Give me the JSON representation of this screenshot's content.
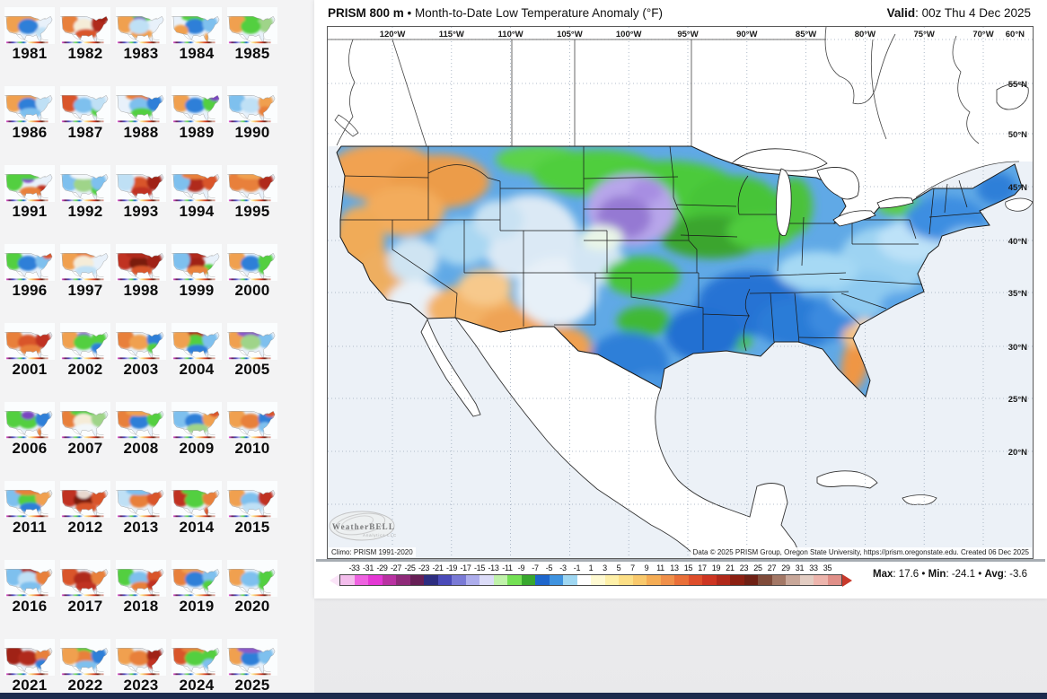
{
  "header": {
    "product": "PRISM 800 m",
    "dot": " • ",
    "title": "Month-to-Date Low Temperature Anomaly (°F)",
    "valid_label": "Valid",
    "valid_value": ": 00z Thu 4 Dec 2025"
  },
  "map": {
    "lon_labels": [
      "120°W",
      "115°W",
      "110°W",
      "105°W",
      "100°W",
      "95°W",
      "90°W",
      "85°W",
      "80°W",
      "75°W",
      "70°W"
    ],
    "lat_labels": [
      "60°N",
      "55°N",
      "50°N",
      "45°N",
      "40°N",
      "35°N",
      "30°N",
      "25°N",
      "20°N"
    ],
    "climo": "Climo: PRISM 1991-2020",
    "credit": "Data © 2025 PRISM Group, Oregon State University, https://prism.oregonstate.edu. Created 06 Dec 2025",
    "watermark": "WeatherBELL",
    "watermark_sub": "Analytics LLC"
  },
  "colorbar": {
    "labels": [
      "-33",
      "-31",
      "-29",
      "-27",
      "-25",
      "-23",
      "-21",
      "-19",
      "-17",
      "-15",
      "-13",
      "-11",
      "-9",
      "-7",
      "-5",
      "-3",
      "-1",
      "1",
      "3",
      "5",
      "7",
      "9",
      "11",
      "13",
      "15",
      "17",
      "19",
      "21",
      "23",
      "25",
      "27",
      "29",
      "31",
      "33",
      "35"
    ],
    "segments": [
      "#f3bdec",
      "#ee62e0",
      "#e438d4",
      "#b932a2",
      "#8f2a79",
      "#671f56",
      "#2d2d80",
      "#4a4ab8",
      "#7a7ad6",
      "#adadec",
      "#dcdcf8",
      "#c0f2aa",
      "#74e054",
      "#38a72e",
      "#1e66cc",
      "#3f93e0",
      "#9fd7f2",
      "#ffffff",
      "#fffad2",
      "#fef0a8",
      "#fcdf86",
      "#f9c96c",
      "#f5ad55",
      "#f0904a",
      "#e96f38",
      "#de4e2b",
      "#cd3522",
      "#b0281a",
      "#8c2012",
      "#6e2014",
      "#7f4b3a",
      "#a37866",
      "#c8a799",
      "#e3cdc3",
      "#edb5ad",
      "#e08f88"
    ],
    "left_arrow": "#fbe4f8",
    "right_arrow": "#c8392b"
  },
  "stats": {
    "max_label": "Max",
    "max_value": ": 17.6",
    "min_label": "Min",
    "min_value": ": -24.1",
    "avg_label": "Avg",
    "avg_value": ": -3.6",
    "sep": " • "
  },
  "sidebar": {
    "years": [
      {
        "label": "1981",
        "blobs": [
          [
            "N",
            "#f0a050"
          ],
          [
            "W",
            "#f0a050"
          ],
          [
            "C",
            "#2f7fd8"
          ],
          [
            "SE",
            "#bfe0f5"
          ]
        ]
      },
      {
        "label": "1982",
        "blobs": [
          [
            "W",
            "#e8803a"
          ],
          [
            "C",
            "#f5ecd8"
          ],
          [
            "E",
            "#b02a1a"
          ],
          [
            "NE",
            "#a02018"
          ],
          [
            "S",
            "#d9542b"
          ]
        ]
      },
      {
        "label": "1983",
        "blobs": [
          [
            "N",
            "#52cf3f"
          ],
          [
            "NC",
            "#8a5ac8"
          ],
          [
            "W",
            "#f0a050"
          ],
          [
            "S",
            "#f0a050"
          ],
          [
            "C",
            "#bfe0f5"
          ]
        ]
      },
      {
        "label": "1984",
        "blobs": [
          [
            "N",
            "#52cf3f"
          ],
          [
            "C",
            "#2f7fd8"
          ],
          [
            "SW",
            "#f0a050"
          ],
          [
            "FL",
            "#f0a050"
          ],
          [
            "E",
            "#7ec0ee"
          ]
        ]
      },
      {
        "label": "1985",
        "blobs": [
          [
            "NC",
            "#7a44c0"
          ],
          [
            "N",
            "#52cf3f"
          ],
          [
            "W",
            "#f0a050"
          ],
          [
            "E",
            "#9fd489"
          ],
          [
            "C",
            "#52cf3f"
          ]
        ]
      },
      {
        "label": "1986",
        "blobs": [
          [
            "W",
            "#f0a050"
          ],
          [
            "N",
            "#f0a050"
          ],
          [
            "C",
            "#2f7fd8"
          ],
          [
            "S",
            "#7ec0ee"
          ],
          [
            "E",
            "#bfe0f5"
          ]
        ]
      },
      {
        "label": "1987",
        "blobs": [
          [
            "NW",
            "#b02a1a"
          ],
          [
            "W",
            "#d9542b"
          ],
          [
            "C",
            "#7ec0ee"
          ],
          [
            "SE",
            "#52cf3f"
          ],
          [
            "E",
            "#bfe0f5"
          ]
        ]
      },
      {
        "label": "1988",
        "blobs": [
          [
            "N",
            "#e8803a"
          ],
          [
            "C",
            "#7ec0ee"
          ],
          [
            "S",
            "#52cf3f"
          ],
          [
            "E",
            "#2f7fd8"
          ]
        ]
      },
      {
        "label": "1989",
        "blobs": [
          [
            "W",
            "#f0a050"
          ],
          [
            "C",
            "#2f7fd8"
          ],
          [
            "E",
            "#52cf3f"
          ],
          [
            "NE",
            "#7a44c0"
          ]
        ]
      },
      {
        "label": "1990",
        "blobs": [
          [
            "W",
            "#7ec0ee"
          ],
          [
            "C",
            "#bfe0f5"
          ],
          [
            "E",
            "#f0a050"
          ],
          [
            "SE",
            "#e8803a"
          ]
        ]
      },
      {
        "label": "1991",
        "blobs": [
          [
            "W",
            "#52cf3f"
          ],
          [
            "NC",
            "#7a44c0"
          ],
          [
            "N",
            "#52cf3f"
          ],
          [
            "SE",
            "#c03020"
          ],
          [
            "S",
            "#e8803a"
          ]
        ]
      },
      {
        "label": "1992",
        "blobs": [
          [
            "W",
            "#7ec0ee"
          ],
          [
            "C",
            "#9fd489"
          ],
          [
            "N",
            "#f2f7fa"
          ],
          [
            "SE",
            "#52cf3f"
          ],
          [
            "E",
            "#7ec0ee"
          ]
        ]
      },
      {
        "label": "1993",
        "blobs": [
          [
            "C",
            "#d9542b"
          ],
          [
            "E",
            "#a02018"
          ],
          [
            "W",
            "#bfe0f5"
          ],
          [
            "S",
            "#c03020"
          ]
        ]
      },
      {
        "label": "1994",
        "blobs": [
          [
            "C",
            "#b02a1a"
          ],
          [
            "E",
            "#d9542b"
          ],
          [
            "W",
            "#7ec0ee"
          ],
          [
            "N",
            "#e8803a"
          ]
        ]
      },
      {
        "label": "1995",
        "blobs": [
          [
            "W",
            "#e8803a"
          ],
          [
            "C",
            "#e8803a"
          ],
          [
            "E",
            "#b02a1a"
          ],
          [
            "N",
            "#f0a050"
          ]
        ]
      },
      {
        "label": "1996",
        "blobs": [
          [
            "W",
            "#52cf3f"
          ],
          [
            "C",
            "#2f7fd8"
          ],
          [
            "E",
            "#7ec0ee"
          ],
          [
            "NE",
            "#d9542b"
          ]
        ]
      },
      {
        "label": "1997",
        "blobs": [
          [
            "N",
            "#e8803a"
          ],
          [
            "W",
            "#f0a050"
          ],
          [
            "C",
            "#f5ecd8"
          ],
          [
            "S",
            "#bfe0f5"
          ]
        ]
      },
      {
        "label": "1998",
        "blobs": [
          [
            "W",
            "#c03020"
          ],
          [
            "C",
            "#7a1a10"
          ],
          [
            "E",
            "#a02018"
          ],
          [
            "N",
            "#b02a1a"
          ],
          [
            "S",
            "#d9542b"
          ]
        ]
      },
      {
        "label": "1999",
        "blobs": [
          [
            "C",
            "#a02018"
          ],
          [
            "N",
            "#b02a1a"
          ],
          [
            "W",
            "#7ec0ee"
          ],
          [
            "SE",
            "#52cf3f"
          ],
          [
            "S",
            "#e8803a"
          ]
        ]
      },
      {
        "label": "2000",
        "blobs": [
          [
            "W",
            "#f0a050"
          ],
          [
            "C",
            "#2f7fd8"
          ],
          [
            "E",
            "#52cf3f"
          ],
          [
            "SE",
            "#52cf3f"
          ]
        ]
      },
      {
        "label": "2001",
        "blobs": [
          [
            "W",
            "#e8803a"
          ],
          [
            "C",
            "#d9542b"
          ],
          [
            "E",
            "#c03020"
          ],
          [
            "S",
            "#e8803a"
          ]
        ]
      },
      {
        "label": "2002",
        "blobs": [
          [
            "W",
            "#f0a050"
          ],
          [
            "NC",
            "#8a5ac8"
          ],
          [
            "C",
            "#52cf3f"
          ],
          [
            "E",
            "#52cf3f"
          ],
          [
            "SE",
            "#2f7fd8"
          ]
        ]
      },
      {
        "label": "2003",
        "blobs": [
          [
            "W",
            "#e8803a"
          ],
          [
            "C",
            "#f0a050"
          ],
          [
            "E",
            "#2f7fd8"
          ],
          [
            "SE",
            "#52cf3f"
          ]
        ]
      },
      {
        "label": "2004",
        "blobs": [
          [
            "N",
            "#b02a1a"
          ],
          [
            "C",
            "#52cf3f"
          ],
          [
            "S",
            "#2f7fd8"
          ],
          [
            "E",
            "#7ec0ee"
          ],
          [
            "W",
            "#f0a050"
          ]
        ]
      },
      {
        "label": "2005",
        "blobs": [
          [
            "W",
            "#f0a050"
          ],
          [
            "NC",
            "#52cf3f"
          ],
          [
            "N",
            "#8a5ac8"
          ],
          [
            "E",
            "#7ec0ee"
          ],
          [
            "C",
            "#9fd489"
          ]
        ]
      },
      {
        "label": "2006",
        "blobs": [
          [
            "W",
            "#52cf3f"
          ],
          [
            "C",
            "#52cf3f"
          ],
          [
            "NC",
            "#7a44c0"
          ],
          [
            "E",
            "#2f7fd8"
          ],
          [
            "FL",
            "#e8803a"
          ]
        ]
      },
      {
        "label": "2007",
        "blobs": [
          [
            "W",
            "#e8803a"
          ],
          [
            "N",
            "#52cf3f"
          ],
          [
            "C",
            "#f5ecd8"
          ],
          [
            "E",
            "#9fd489"
          ],
          [
            "S",
            "#f2f7fa"
          ]
        ]
      },
      {
        "label": "2008",
        "blobs": [
          [
            "W",
            "#e8803a"
          ],
          [
            "C",
            "#2f7fd8"
          ],
          [
            "E",
            "#52cf3f"
          ],
          [
            "N",
            "#f0a050"
          ]
        ]
      },
      {
        "label": "2009",
        "blobs": [
          [
            "W",
            "#7ec0ee"
          ],
          [
            "C",
            "#2f7fd8"
          ],
          [
            "E",
            "#f0a050"
          ],
          [
            "NE",
            "#d9542b"
          ],
          [
            "S",
            "#9fd489"
          ]
        ]
      },
      {
        "label": "2010",
        "blobs": [
          [
            "W",
            "#f0a050"
          ],
          [
            "C",
            "#e8803a"
          ],
          [
            "E",
            "#2f7fd8"
          ],
          [
            "NE",
            "#d9542b"
          ],
          [
            "SE",
            "#7ec0ee"
          ]
        ]
      },
      {
        "label": "2011",
        "blobs": [
          [
            "W",
            "#7ec0ee"
          ],
          [
            "C",
            "#52cf3f"
          ],
          [
            "E",
            "#f0a050"
          ],
          [
            "N",
            "#e8803a"
          ],
          [
            "S",
            "#2f7fd8"
          ]
        ]
      },
      {
        "label": "2012",
        "blobs": [
          [
            "W",
            "#c03020"
          ],
          [
            "C",
            "#7a1a10"
          ],
          [
            "E",
            "#d9542b"
          ],
          [
            "S",
            "#d9542b"
          ],
          [
            "NC",
            "#e8d8ce"
          ]
        ]
      },
      {
        "label": "2013",
        "blobs": [
          [
            "W",
            "#bfe0f5"
          ],
          [
            "C",
            "#e8803a"
          ],
          [
            "E",
            "#d9542b"
          ],
          [
            "N",
            "#7ec0ee"
          ]
        ]
      },
      {
        "label": "2014",
        "blobs": [
          [
            "W",
            "#c03020"
          ],
          [
            "C",
            "#52cf3f"
          ],
          [
            "E",
            "#e8803a"
          ],
          [
            "FL",
            "#d9542b"
          ],
          [
            "N",
            "#52cf3f"
          ]
        ]
      },
      {
        "label": "2015",
        "blobs": [
          [
            "W",
            "#f0a050"
          ],
          [
            "C",
            "#7ec0ee"
          ],
          [
            "E",
            "#c03020"
          ],
          [
            "S",
            "#bfe0f5"
          ]
        ]
      },
      {
        "label": "2016",
        "blobs": [
          [
            "N",
            "#b02a1a"
          ],
          [
            "W",
            "#7ec0ee"
          ],
          [
            "C",
            "#bfe0f5"
          ],
          [
            "E",
            "#e8803a"
          ],
          [
            "S",
            "#7ec0ee"
          ]
        ]
      },
      {
        "label": "2017",
        "blobs": [
          [
            "W",
            "#d9542b"
          ],
          [
            "C",
            "#b02a1a"
          ],
          [
            "E",
            "#e8803a"
          ],
          [
            "S",
            "#c03020"
          ]
        ]
      },
      {
        "label": "2018",
        "blobs": [
          [
            "W",
            "#52cf3f"
          ],
          [
            "C",
            "#7ec0ee"
          ],
          [
            "E",
            "#d9542b"
          ],
          [
            "S",
            "#e8803a"
          ],
          [
            "SE",
            "#c03020"
          ]
        ]
      },
      {
        "label": "2019",
        "blobs": [
          [
            "W",
            "#e8803a"
          ],
          [
            "N",
            "#f0a050"
          ],
          [
            "C",
            "#2f7fd8"
          ],
          [
            "E",
            "#7ec0ee"
          ],
          [
            "SE",
            "#52cf3f"
          ]
        ]
      },
      {
        "label": "2020",
        "blobs": [
          [
            "W",
            "#f0a050"
          ],
          [
            "C",
            "#7ec0ee"
          ],
          [
            "E",
            "#52cf3f"
          ],
          [
            "SE",
            "#52cf3f"
          ]
        ]
      },
      {
        "label": "2021",
        "blobs": [
          [
            "W",
            "#a02018"
          ],
          [
            "C",
            "#b02a1a"
          ],
          [
            "E",
            "#e8803a"
          ],
          [
            "SE",
            "#2f7fd8"
          ]
        ]
      },
      {
        "label": "2022",
        "blobs": [
          [
            "N",
            "#52cf3f"
          ],
          [
            "C",
            "#e8803a"
          ],
          [
            "E",
            "#2f7fd8"
          ],
          [
            "S",
            "#7ec0ee"
          ],
          [
            "W",
            "#f0a050"
          ]
        ]
      },
      {
        "label": "2023",
        "blobs": [
          [
            "W",
            "#f0a050"
          ],
          [
            "C",
            "#e8803a"
          ],
          [
            "E",
            "#a02018"
          ],
          [
            "SE",
            "#c03020"
          ]
        ]
      },
      {
        "label": "2024",
        "blobs": [
          [
            "W",
            "#d9542b"
          ],
          [
            "N",
            "#e8803a"
          ],
          [
            "C",
            "#52cf3f"
          ],
          [
            "E",
            "#52cf3f"
          ],
          [
            "SE",
            "#7ec0ee"
          ]
        ]
      },
      {
        "label": "2025",
        "blobs": [
          [
            "W",
            "#f0a050"
          ],
          [
            "NC",
            "#52cf3f"
          ],
          [
            "C",
            "#2f7fd8"
          ],
          [
            "E",
            "#7ec0ee"
          ],
          [
            "N",
            "#8a5ac8"
          ]
        ]
      }
    ]
  }
}
